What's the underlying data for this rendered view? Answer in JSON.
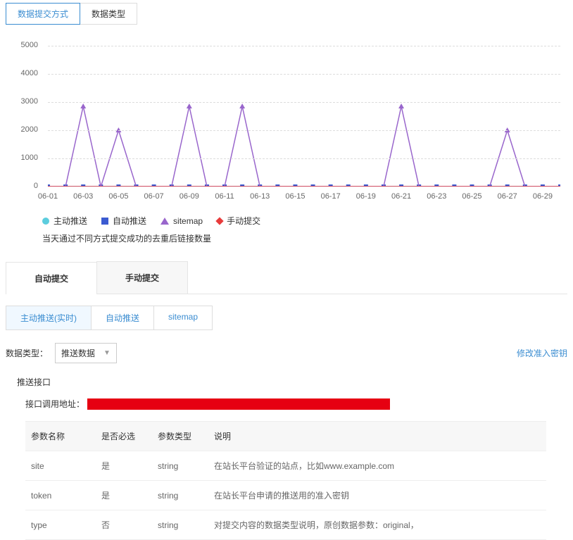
{
  "top_tabs": {
    "active": "数据提交方式",
    "other": "数据类型"
  },
  "chart": {
    "type": "line",
    "ylim": [
      0,
      5000
    ],
    "ytick_step": 1000,
    "yticks": [
      0,
      1000,
      2000,
      3000,
      4000,
      5000
    ],
    "xlabels": [
      "06-01",
      "06-03",
      "06-05",
      "06-07",
      "06-09",
      "06-11",
      "06-13",
      "06-15",
      "06-17",
      "06-19",
      "06-21",
      "06-23",
      "06-25",
      "06-27",
      "06-29"
    ],
    "n_points": 30,
    "grid_color": "#dddddd",
    "axis_color": "#999999",
    "series": {
      "active_push": {
        "label": "主动推送",
        "color": "#5ccdde",
        "marker": "circle",
        "values": [
          0,
          0,
          0,
          0,
          0,
          0,
          0,
          0,
          0,
          0,
          0,
          0,
          0,
          0,
          0,
          0,
          0,
          0,
          0,
          0,
          0,
          0,
          0,
          0,
          0,
          0,
          0,
          0,
          0,
          0
        ]
      },
      "auto_push": {
        "label": "自动推送",
        "color": "#3b5bd1",
        "marker": "square",
        "values": [
          0,
          0,
          0,
          0,
          0,
          0,
          0,
          0,
          0,
          0,
          0,
          0,
          0,
          0,
          0,
          0,
          0,
          0,
          0,
          0,
          0,
          0,
          0,
          0,
          0,
          0,
          0,
          0,
          0,
          0
        ]
      },
      "sitemap": {
        "label": "sitemap",
        "color": "#9966cc",
        "marker": "triangle",
        "values": [
          0,
          0,
          2850,
          0,
          2000,
          0,
          0,
          0,
          2850,
          0,
          0,
          2850,
          0,
          0,
          0,
          0,
          0,
          0,
          0,
          0,
          2850,
          0,
          0,
          0,
          0,
          0,
          2000,
          0,
          0,
          0
        ]
      },
      "manual": {
        "label": "手动提交",
        "color": "#e83b3b",
        "marker": "diamond",
        "values": [
          0,
          0,
          0,
          0,
          0,
          0,
          0,
          0,
          0,
          0,
          0,
          0,
          0,
          0,
          0,
          0,
          0,
          0,
          0,
          0,
          0,
          0,
          0,
          0,
          0,
          0,
          0,
          0,
          0,
          0
        ]
      }
    },
    "note": "当天通过不同方式提交成功的去重后链接数量"
  },
  "main_tabs": {
    "active": "自动提交",
    "other": "手动提交"
  },
  "sub_tabs": {
    "t1": "主动推送(实时)",
    "t2": "自动推送",
    "t3": "sitemap"
  },
  "filter": {
    "label": "数据类型：",
    "selected": "推送数据"
  },
  "modify_key": "修改准入密钥",
  "api": {
    "title": "推送接口",
    "url_label": "接口调用地址："
  },
  "params": {
    "headers": {
      "name": "参数名称",
      "required": "是否必选",
      "type": "参数类型",
      "desc": "说明"
    },
    "rows": [
      {
        "name": "site",
        "required": "是",
        "type": "string",
        "desc": "在站长平台验证的站点，比如www.example.com"
      },
      {
        "name": "token",
        "required": "是",
        "type": "string",
        "desc": "在站长平台申请的推送用的准入密钥"
      },
      {
        "name": "type",
        "required": "否",
        "type": "string",
        "desc": "对提交内容的数据类型说明，原创数据参数：original，"
      }
    ]
  }
}
